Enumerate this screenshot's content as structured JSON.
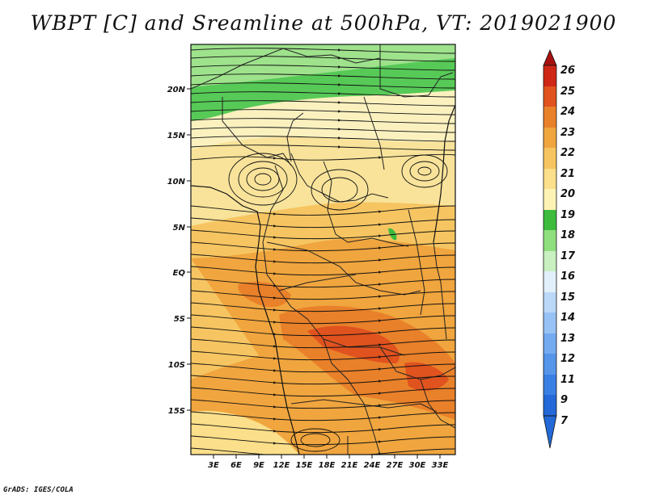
{
  "title": "WBPT [C] and Sreamline at 500hPa, VT: 2019021900",
  "footer": "GrADS: IGES/COLA",
  "map": {
    "lat_labels": [
      "20N",
      "15N",
      "10N",
      "5N",
      "EQ",
      "5S",
      "10S",
      "15S"
    ],
    "lon_labels": [
      "3E",
      "6E",
      "9E",
      "12E",
      "15E",
      "18E",
      "21E",
      "24E",
      "27E",
      "30E",
      "33E"
    ]
  },
  "colorbar": {
    "labels": [
      "7",
      "9",
      "11",
      "12",
      "13",
      "14",
      "15",
      "16",
      "17",
      "18",
      "19",
      "20",
      "21",
      "22",
      "23",
      "24",
      "25",
      "26"
    ],
    "colors": {
      "c7": "#2369d8",
      "c9": "#3a7fe3",
      "c11": "#5595ea",
      "c12": "#74aaf0",
      "c13": "#97c2f5",
      "c14": "#bcd8f8",
      "c15": "#e1f0fb",
      "c16": "#c8f0c0",
      "c17": "#8fdf7e",
      "c18": "#3dbb3d",
      "c19": "#fcf3b4",
      "c20": "#fbdf8a",
      "c21": "#f6c561",
      "c22": "#f0a53e",
      "c23": "#e9802a",
      "c24": "#e0521e",
      "c25": "#cf2716",
      "c26": "#a6110f"
    }
  }
}
